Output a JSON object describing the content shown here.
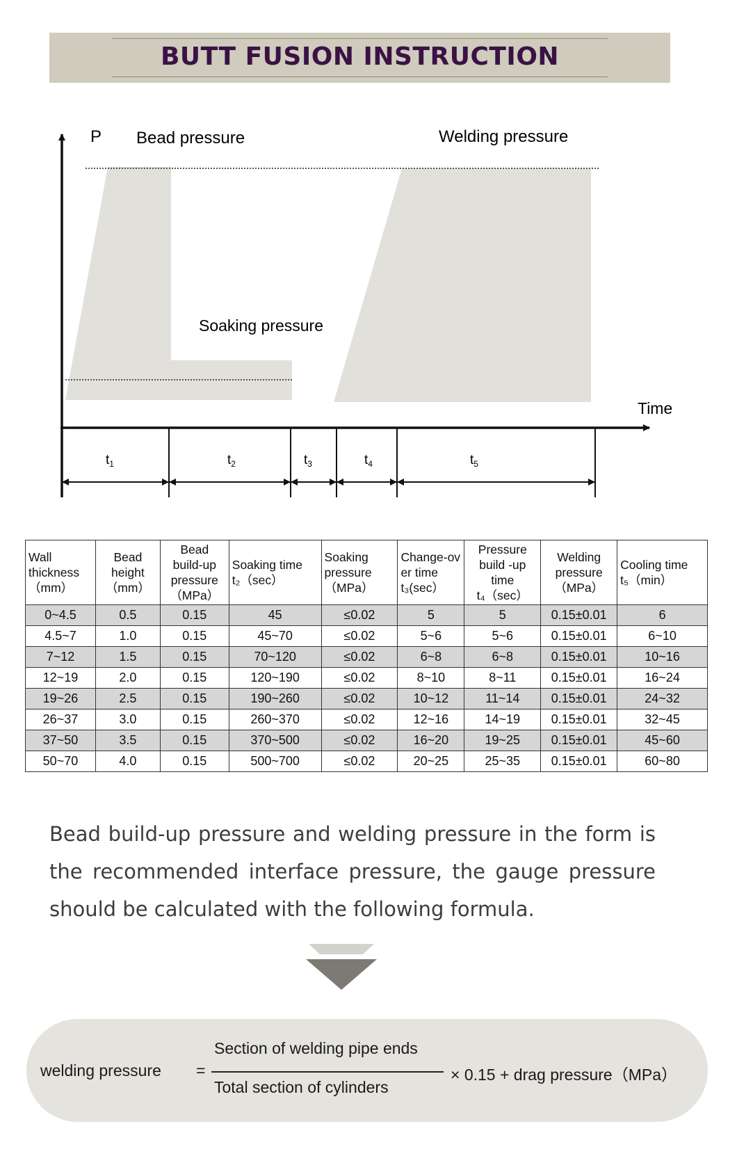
{
  "banner": {
    "title": "BUTT FUSION INSTRUCTION"
  },
  "diagram": {
    "y_axis_label": "P",
    "bead_pressure": "Bead pressure",
    "welding_pressure": "Welding pressure",
    "soaking_pressure": "Soaking pressure",
    "x_axis_label": "Time",
    "intervals": [
      {
        "main": "t",
        "sub": "1"
      },
      {
        "main": "t",
        "sub": "2"
      },
      {
        "main": "t",
        "sub": "3"
      },
      {
        "main": "t",
        "sub": "4"
      },
      {
        "main": "t",
        "sub": "5"
      }
    ],
    "colors": {
      "shape_fill": "#e2e0da",
      "axis": "#111111"
    }
  },
  "table": {
    "headers": [
      {
        "lines": [
          "Wall",
          "thickness",
          "（mm）"
        ]
      },
      {
        "lines": [
          "Bead",
          "height",
          "（mm）"
        ]
      },
      {
        "lines": [
          "Bead",
          "build-up",
          "pressure",
          "（MPa）"
        ]
      },
      {
        "lines": [
          "Soaking time",
          "t₂（sec）"
        ]
      },
      {
        "lines": [
          "Soaking",
          "pressure",
          "（MPa）"
        ]
      },
      {
        "lines": [
          "Change-ov",
          "er time",
          "t₃(sec）"
        ]
      },
      {
        "lines": [
          "Pressure",
          "build -up",
          "time",
          "t₄（sec）"
        ]
      },
      {
        "lines": [
          "Welding",
          "pressure",
          "（MPa）"
        ]
      },
      {
        "lines": [
          "Cooling time",
          "t₅（min）"
        ]
      }
    ],
    "rows": [
      [
        "0~4.5",
        "0.5",
        "0.15",
        "45",
        "≤0.02",
        "5",
        "5",
        "0.15±0.01",
        "6"
      ],
      [
        "4.5~7",
        "1.0",
        "0.15",
        "45~70",
        "≤0.02",
        "5~6",
        "5~6",
        "0.15±0.01",
        "6~10"
      ],
      [
        "7~12",
        "1.5",
        "0.15",
        "70~120",
        "≤0.02",
        "6~8",
        "6~8",
        "0.15±0.01",
        "10~16"
      ],
      [
        "12~19",
        "2.0",
        "0.15",
        "120~190",
        "≤0.02",
        "8~10",
        "8~11",
        "0.15±0.01",
        "16~24"
      ],
      [
        "19~26",
        "2.5",
        "0.15",
        "190~260",
        "≤0.02",
        "10~12",
        "11~14",
        "0.15±0.01",
        "24~32"
      ],
      [
        "26~37",
        "3.0",
        "0.15",
        "260~370",
        "≤0.02",
        "12~16",
        "14~19",
        "0.15±0.01",
        "32~45"
      ],
      [
        "37~50",
        "3.5",
        "0.15",
        "370~500",
        "≤0.02",
        "16~20",
        "19~25",
        "0.15±0.01",
        "45~60"
      ],
      [
        "50~70",
        "4.0",
        "0.15",
        "500~700",
        "≤0.02",
        "20~25",
        "25~35",
        "0.15±0.01",
        "60~80"
      ]
    ],
    "colors": {
      "shaded_row": "#d6d6d6",
      "plain_row": "#ffffff"
    }
  },
  "note": {
    "text": "Bead build-up pressure and welding pressure in the form is the recommended interface pressure, the gauge pressure should be calculated with the following formula."
  },
  "formula": {
    "lhs": "welding pressure",
    "equals": "=",
    "numerator": "Section of welding pipe ends",
    "denominator": "Total section of cylinders",
    "rhs": "× 0.15 + drag pressure（MPa）"
  }
}
